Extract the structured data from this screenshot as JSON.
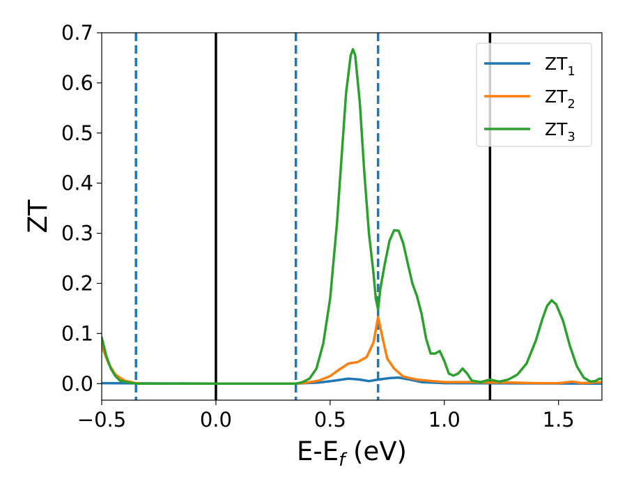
{
  "chart_data": {
    "type": "line",
    "title": "",
    "xlabel": {
      "base": "E-E",
      "sub": "f",
      "suffix": " (eV)"
    },
    "ylabel": "ZT",
    "xlim": [
      -0.5,
      1.69
    ],
    "ylim": [
      -0.033,
      0.7
    ],
    "xticks": [
      -0.5,
      0.0,
      0.5,
      1.0,
      1.5
    ],
    "xtick_labels": [
      "−0.5",
      "0.0",
      "0.5",
      "1.0",
      "1.5"
    ],
    "yticks": [
      0.0,
      0.1,
      0.2,
      0.3,
      0.4,
      0.5,
      0.6,
      0.7
    ],
    "ytick_labels": [
      "0.0",
      "0.1",
      "0.2",
      "0.3",
      "0.4",
      "0.5",
      "0.6",
      "0.7"
    ],
    "grid": false,
    "legend_position": "top-right",
    "vertical_lines": [
      {
        "x": -0.35,
        "style": "dashed",
        "color": "#1f77b4"
      },
      {
        "x": 0.0,
        "style": "solid",
        "color": "#000000"
      },
      {
        "x": 0.35,
        "style": "dashed",
        "color": "#1f77b4"
      },
      {
        "x": 0.71,
        "style": "dashed",
        "color": "#1f77b4"
      },
      {
        "x": 1.2,
        "style": "solid",
        "color": "#000000"
      }
    ],
    "series": [
      {
        "name": "ZT",
        "sub": "1",
        "color": "#1f77b4",
        "points": [
          [
            -0.5,
            0.001
          ],
          [
            0.0,
            0.0
          ],
          [
            0.35,
            0.0
          ],
          [
            0.45,
            0.002
          ],
          [
            0.52,
            0.006
          ],
          [
            0.58,
            0.01
          ],
          [
            0.63,
            0.008
          ],
          [
            0.67,
            0.005
          ],
          [
            0.71,
            0.008
          ],
          [
            0.76,
            0.011
          ],
          [
            0.8,
            0.012
          ],
          [
            0.85,
            0.008
          ],
          [
            0.9,
            0.003
          ],
          [
            1.0,
            0.001
          ],
          [
            1.69,
            0.0
          ]
        ]
      },
      {
        "name": "ZT",
        "sub": "2",
        "color": "#ff7f0e",
        "points": [
          [
            -0.5,
            0.075
          ],
          [
            -0.47,
            0.04
          ],
          [
            -0.44,
            0.018
          ],
          [
            -0.4,
            0.006
          ],
          [
            -0.35,
            0.001
          ],
          [
            -0.3,
            0.0
          ],
          [
            0.35,
            0.0
          ],
          [
            0.4,
            0.002
          ],
          [
            0.45,
            0.006
          ],
          [
            0.5,
            0.015
          ],
          [
            0.54,
            0.028
          ],
          [
            0.58,
            0.04
          ],
          [
            0.62,
            0.043
          ],
          [
            0.66,
            0.053
          ],
          [
            0.69,
            0.082
          ],
          [
            0.71,
            0.133
          ],
          [
            0.73,
            0.09
          ],
          [
            0.75,
            0.05
          ],
          [
            0.78,
            0.03
          ],
          [
            0.82,
            0.014
          ],
          [
            0.88,
            0.008
          ],
          [
            0.95,
            0.005
          ],
          [
            1.0,
            0.003
          ],
          [
            1.1,
            0.003
          ],
          [
            1.2,
            0.002
          ],
          [
            1.3,
            0.002
          ],
          [
            1.4,
            0.001
          ],
          [
            1.5,
            0.001
          ],
          [
            1.56,
            0.004
          ],
          [
            1.6,
            0.001
          ],
          [
            1.69,
            0.003
          ]
        ]
      },
      {
        "name": "ZT",
        "sub": "3",
        "color": "#2ca02c",
        "points": [
          [
            -0.5,
            0.092
          ],
          [
            -0.48,
            0.055
          ],
          [
            -0.46,
            0.03
          ],
          [
            -0.44,
            0.015
          ],
          [
            -0.42,
            0.006
          ],
          [
            -0.38,
            0.002
          ],
          [
            -0.35,
            0.0
          ],
          [
            0.35,
            0.0
          ],
          [
            0.38,
            0.003
          ],
          [
            0.41,
            0.01
          ],
          [
            0.44,
            0.03
          ],
          [
            0.47,
            0.08
          ],
          [
            0.5,
            0.17
          ],
          [
            0.53,
            0.32
          ],
          [
            0.55,
            0.45
          ],
          [
            0.57,
            0.58
          ],
          [
            0.59,
            0.655
          ],
          [
            0.6,
            0.667
          ],
          [
            0.61,
            0.655
          ],
          [
            0.63,
            0.56
          ],
          [
            0.65,
            0.42
          ],
          [
            0.67,
            0.3
          ],
          [
            0.69,
            0.22
          ],
          [
            0.7,
            0.17
          ],
          [
            0.71,
            0.148
          ],
          [
            0.72,
            0.19
          ],
          [
            0.74,
            0.24
          ],
          [
            0.76,
            0.285
          ],
          [
            0.78,
            0.306
          ],
          [
            0.8,
            0.305
          ],
          [
            0.82,
            0.28
          ],
          [
            0.84,
            0.24
          ],
          [
            0.86,
            0.2
          ],
          [
            0.88,
            0.175
          ],
          [
            0.9,
            0.14
          ],
          [
            0.92,
            0.09
          ],
          [
            0.94,
            0.06
          ],
          [
            0.96,
            0.06
          ],
          [
            0.98,
            0.065
          ],
          [
            1.0,
            0.045
          ],
          [
            1.02,
            0.02
          ],
          [
            1.04,
            0.016
          ],
          [
            1.06,
            0.02
          ],
          [
            1.08,
            0.03
          ],
          [
            1.1,
            0.02
          ],
          [
            1.12,
            0.006
          ],
          [
            1.16,
            0.003
          ],
          [
            1.2,
            0.008
          ],
          [
            1.24,
            0.004
          ],
          [
            1.28,
            0.008
          ],
          [
            1.32,
            0.018
          ],
          [
            1.36,
            0.04
          ],
          [
            1.4,
            0.085
          ],
          [
            1.43,
            0.13
          ],
          [
            1.45,
            0.155
          ],
          [
            1.47,
            0.166
          ],
          [
            1.49,
            0.158
          ],
          [
            1.52,
            0.125
          ],
          [
            1.55,
            0.075
          ],
          [
            1.58,
            0.035
          ],
          [
            1.61,
            0.012
          ],
          [
            1.64,
            0.004
          ],
          [
            1.66,
            0.005
          ],
          [
            1.68,
            0.01
          ],
          [
            1.69,
            0.009
          ]
        ]
      }
    ]
  }
}
